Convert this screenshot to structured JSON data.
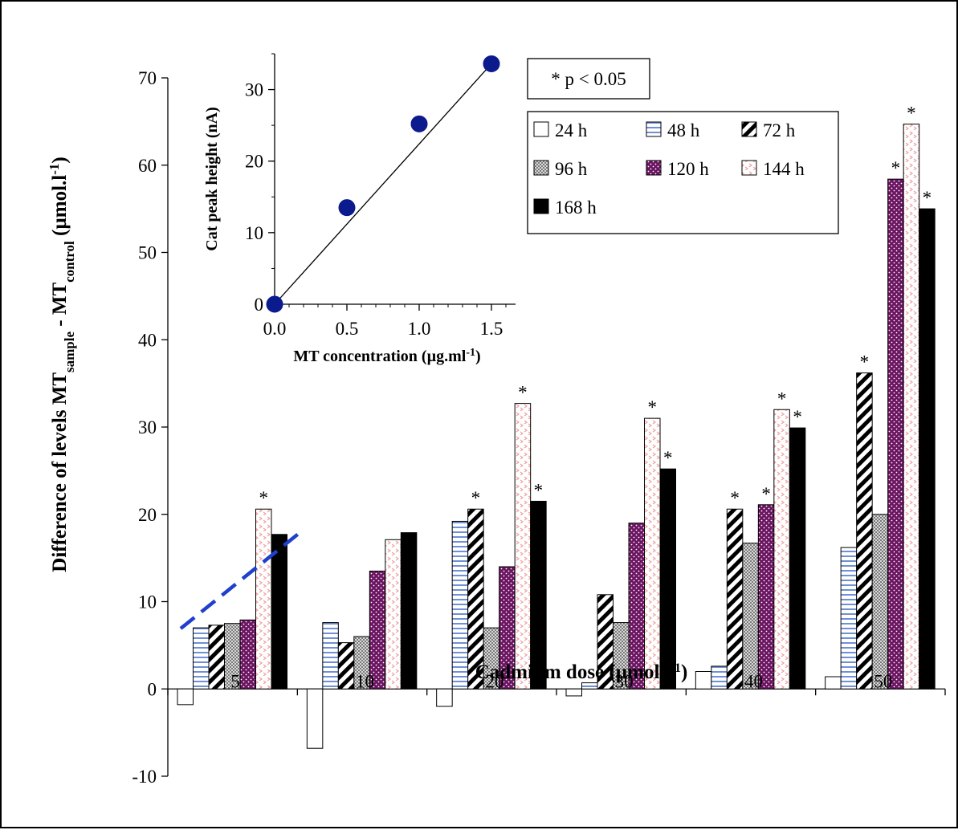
{
  "chart_data": [
    {
      "type": "bar",
      "title": "",
      "xlabel": "Cadmium dose (µmol.l-1)",
      "xlabel_main": "Cadmium dose (µmol.l",
      "xlabel_sup": "-1",
      "xlabel_end": ")",
      "ylabel": "Difference of levels MT sample - MT control (µmol.l-1)",
      "ylabel_parts": {
        "a": "Difference of levels MT",
        "sub1": "sample",
        "b": " - MT",
        "sub2": "control",
        "c": " (µmol.l",
        "sup": "-1",
        "d": ")"
      },
      "categories": [
        "5",
        "10",
        "20",
        "30",
        "40",
        "50"
      ],
      "ylim": [
        -10,
        70
      ],
      "yticks": [
        -10,
        0,
        10,
        20,
        30,
        40,
        50,
        60,
        70
      ],
      "grid": false,
      "legend_position": "top-right",
      "significance_note": "* p < 0.05",
      "series": [
        {
          "name": "24 h",
          "values": [
            -1.8,
            -6.8,
            -2.0,
            -0.8,
            2.0,
            1.4
          ]
        },
        {
          "name": "48 h",
          "values": [
            7.0,
            7.6,
            19.2,
            0.7,
            2.6,
            16.2
          ]
        },
        {
          "name": "72 h",
          "values": [
            7.3,
            5.3,
            20.6,
            10.8,
            20.6,
            36.2
          ]
        },
        {
          "name": "96 h",
          "values": [
            7.5,
            6.0,
            7.0,
            7.6,
            16.7,
            20.0
          ]
        },
        {
          "name": "120 h",
          "values": [
            7.9,
            13.5,
            14.0,
            19.0,
            21.1,
            58.4
          ]
        },
        {
          "name": "144 h",
          "values": [
            20.6,
            17.1,
            32.7,
            31.0,
            32.0,
            64.7
          ]
        },
        {
          "name": "168 h",
          "values": [
            17.7,
            17.9,
            21.5,
            25.2,
            29.9,
            55.0
          ]
        }
      ],
      "significant": [
        {
          "category": 0,
          "series": 5
        },
        {
          "category": 2,
          "series": 2
        },
        {
          "category": 2,
          "series": 5
        },
        {
          "category": 2,
          "series": 6
        },
        {
          "category": 3,
          "series": 5
        },
        {
          "category": 3,
          "series": 6
        },
        {
          "category": 4,
          "series": 2
        },
        {
          "category": 4,
          "series": 4
        },
        {
          "category": 4,
          "series": 5
        },
        {
          "category": 4,
          "series": 6
        },
        {
          "category": 5,
          "series": 2
        },
        {
          "category": 5,
          "series": 4
        },
        {
          "category": 5,
          "series": 5
        },
        {
          "category": 5,
          "series": 6
        }
      ],
      "annotation_line": {
        "style": "dashed",
        "color": "#1f3fcf"
      },
      "star_symbol": "*"
    },
    {
      "type": "scatter",
      "title": "",
      "xlabel": "MT concentration (µg.ml-1)",
      "xlabel_main": "MT concentration (µg.ml",
      "xlabel_sup": "-1",
      "xlabel_end": ")",
      "ylabel": "Cat peak height (nA)",
      "x": [
        0.0,
        0.5,
        1.0,
        1.5
      ],
      "y": [
        0.0,
        13.5,
        25.2,
        33.6
      ],
      "xlim": [
        0,
        1.5
      ],
      "ylim": [
        0,
        35
      ],
      "xticks": [
        "0.0",
        "0.5",
        "1.0",
        "1.5"
      ],
      "yticks": [
        "0",
        "10",
        "20",
        "30"
      ],
      "point_color": "#0b1a8c",
      "trendline": {
        "x": [
          0.0,
          1.5
        ],
        "y": [
          0.0,
          33.6
        ]
      }
    }
  ],
  "colors": {
    "48h_stripe": "#6f8fd6",
    "96h_check": "#8c8c8c",
    "120h_fill": "#6b1461",
    "144h_dots": "#f0a0a0",
    "168h_fill": "#000000"
  }
}
